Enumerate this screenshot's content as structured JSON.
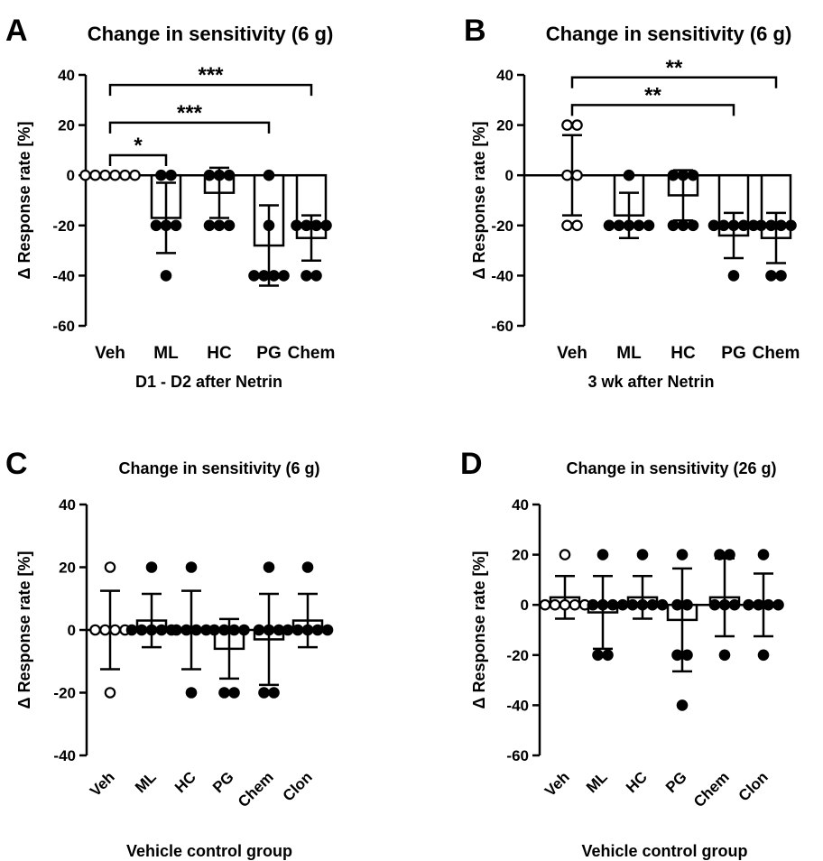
{
  "chart_data": [
    {
      "panel_label": "A",
      "type": "bar",
      "title": "Change in sensitivity (6 g)",
      "xlabel": "D1 - D2 after Netrin",
      "ylabel": "Δ Response rate [%]",
      "ylim": [
        -60,
        40
      ],
      "yticks": [
        40,
        20,
        0,
        -20,
        -40,
        -60
      ],
      "categories": [
        "Veh",
        "ML",
        "HC",
        "PG",
        "Chem"
      ],
      "tick_rotation": 0,
      "means": [
        0,
        -17,
        -7,
        -28,
        -25
      ],
      "errors": [
        0,
        14,
        10,
        16,
        9
      ],
      "points": [
        [
          0,
          0,
          0,
          0,
          0,
          0
        ],
        [
          0,
          0,
          -20,
          -20,
          -20,
          -40
        ],
        [
          0,
          0,
          0,
          -20,
          -20,
          -20
        ],
        [
          0,
          -20,
          -40,
          -40,
          -40,
          -40
        ],
        [
          -20,
          -20,
          -20,
          -20,
          -40,
          -40
        ]
      ],
      "open_markers": [
        true,
        false,
        false,
        false,
        false
      ],
      "significance": [
        {
          "from": "Veh",
          "to": "ML",
          "label": "*",
          "y": 8
        },
        {
          "from": "Veh",
          "to": "PG",
          "label": "***",
          "y": 21
        },
        {
          "from": "Veh",
          "to": "Chem",
          "label": "***",
          "y": 36
        }
      ]
    },
    {
      "panel_label": "B",
      "type": "bar",
      "title": "Change in sensitivity (6 g)",
      "xlabel": "3 wk after Netrin",
      "ylabel": "Δ Response rate [%]",
      "ylim": [
        -60,
        40
      ],
      "yticks": [
        40,
        20,
        0,
        -20,
        -40,
        -60
      ],
      "categories": [
        "Veh",
        "ML",
        "HC",
        "PG",
        "Chem"
      ],
      "tick_rotation": 0,
      "means": [
        0,
        -16,
        -8,
        -24,
        -25
      ],
      "errors": [
        16,
        9,
        10,
        9,
        10
      ],
      "points": [
        [
          20,
          20,
          0,
          0,
          -20,
          -20
        ],
        [
          0,
          -20,
          -20,
          -20,
          -20,
          -20
        ],
        [
          0,
          0,
          0,
          -20,
          -20,
          -20
        ],
        [
          -20,
          -20,
          -20,
          -20,
          -20,
          -40
        ],
        [
          -20,
          -20,
          -20,
          -20,
          -40,
          -40
        ]
      ],
      "open_markers": [
        true,
        false,
        false,
        false,
        false
      ],
      "significance": [
        {
          "from": "Veh",
          "to": "PG",
          "label": "**",
          "y": 28
        },
        {
          "from": "Veh",
          "to": "Chem",
          "label": "**",
          "y": 39
        }
      ]
    },
    {
      "panel_label": "C",
      "type": "bar",
      "title": "Change in sensitivity (6 g)",
      "xlabel": "Vehicle control group",
      "ylabel": "Δ Response rate [%]",
      "ylim": [
        -40,
        40
      ],
      "yticks": [
        40,
        20,
        0,
        -20,
        -40
      ],
      "categories": [
        "Veh",
        "ML",
        "HC",
        "PG",
        "Chem",
        "Clon"
      ],
      "tick_rotation": -45,
      "means": [
        0,
        3,
        0,
        -6,
        -3,
        3
      ],
      "errors": [
        12.5,
        8.5,
        12.5,
        9.5,
        14.5,
        8.5
      ],
      "points": [
        [
          20,
          0,
          0,
          0,
          0,
          -20
        ],
        [
          20,
          0,
          0,
          0,
          0,
          0
        ],
        [
          20,
          0,
          0,
          0,
          0,
          -20
        ],
        [
          0,
          0,
          0,
          0,
          -20,
          -20
        ],
        [
          20,
          0,
          0,
          0,
          -20,
          -20
        ],
        [
          20,
          0,
          0,
          0,
          0,
          0
        ]
      ],
      "open_markers": [
        true,
        false,
        false,
        false,
        false,
        false
      ],
      "significance": []
    },
    {
      "panel_label": "D",
      "type": "bar",
      "title": "Change in sensitivity (26 g)",
      "xlabel": "Vehicle control group",
      "ylabel": "Δ Response rate [%]",
      "ylim": [
        -60,
        40
      ],
      "yticks": [
        40,
        20,
        0,
        -20,
        -40,
        -60
      ],
      "categories": [
        "Veh",
        "ML",
        "HC",
        "PG",
        "Chem",
        "Clon"
      ],
      "tick_rotation": -45,
      "means": [
        3,
        -3,
        3,
        -6,
        3,
        0
      ],
      "errors": [
        8.5,
        14.5,
        8.5,
        20.5,
        15.5,
        12.5
      ],
      "points": [
        [
          20,
          0,
          0,
          0,
          0,
          0
        ],
        [
          20,
          0,
          0,
          0,
          -20,
          -20
        ],
        [
          20,
          0,
          0,
          0,
          0,
          0
        ],
        [
          20,
          0,
          0,
          -20,
          -20,
          -40
        ],
        [
          20,
          20,
          0,
          0,
          0,
          -20
        ],
        [
          20,
          0,
          0,
          0,
          0,
          -20
        ]
      ],
      "open_markers": [
        true,
        false,
        false,
        false,
        false,
        false
      ],
      "significance": []
    }
  ]
}
